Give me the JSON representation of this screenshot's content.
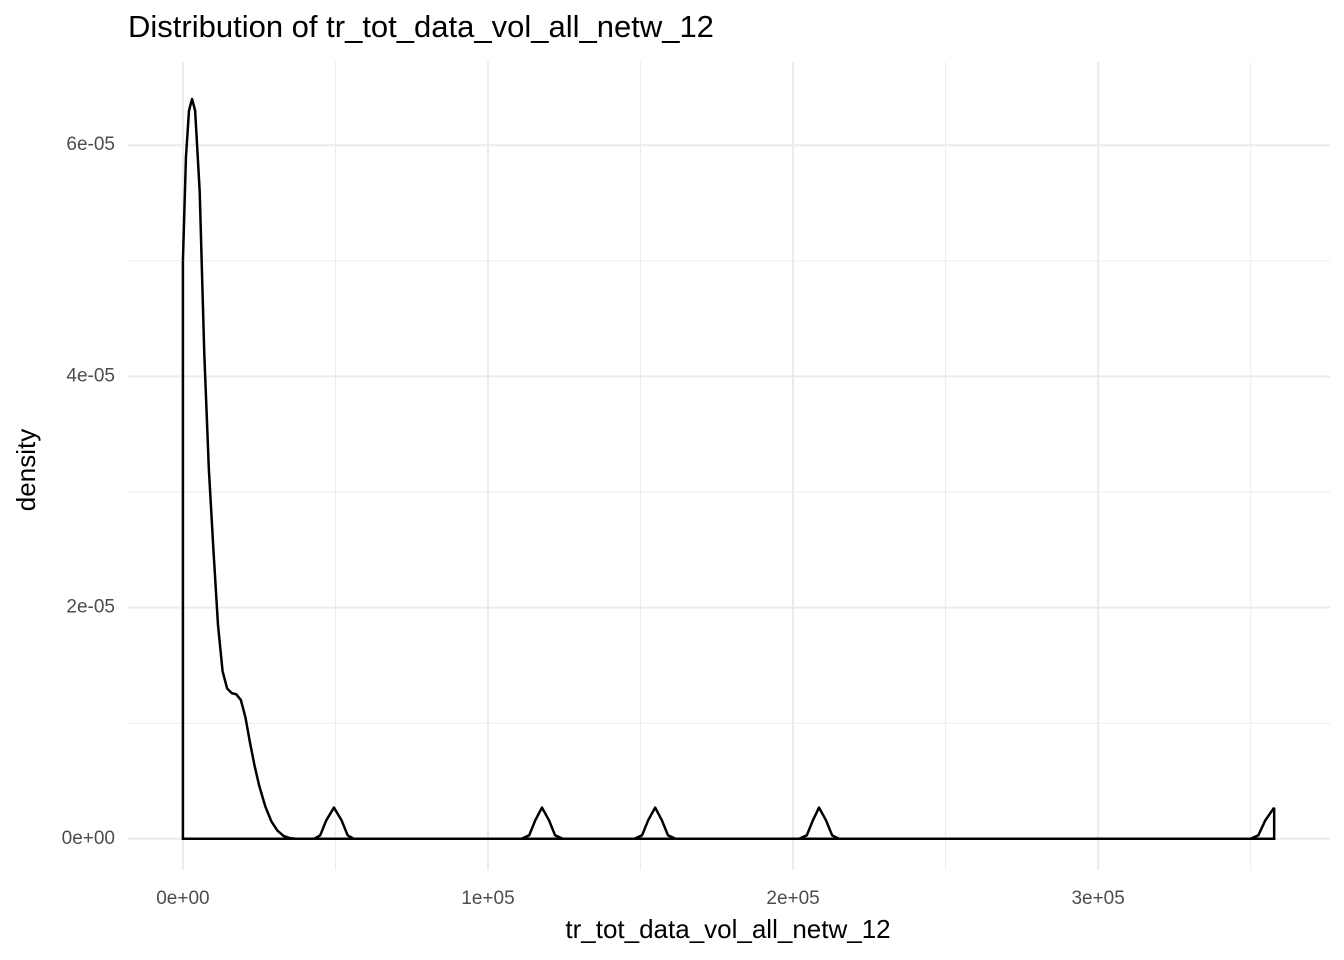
{
  "chart_data": {
    "type": "density",
    "title": "Distribution of tr_tot_data_vol_all_netw_12",
    "x_label": "tr_tot_data_vol_all_netw_12",
    "y_label": "density",
    "color": "#000000",
    "grid": true,
    "xlim": [
      -18000,
      376000
    ],
    "ylim": [
      -2.7e-06,
      6.72e-05
    ],
    "xticks": [
      {
        "value": 0,
        "label": "0e+00"
      },
      {
        "value": 100000,
        "label": "1e+05"
      },
      {
        "value": 200000,
        "label": "2e+05"
      },
      {
        "value": 300000,
        "label": "3e+05"
      }
    ],
    "yticks": [
      {
        "value": 0,
        "label": "0e+00"
      },
      {
        "value": 2e-05,
        "label": "2e-05"
      },
      {
        "value": 4e-05,
        "label": "4e-05"
      },
      {
        "value": 6e-05,
        "label": "6e-05"
      }
    ],
    "xminor": [
      50000,
      150000,
      250000,
      350000
    ],
    "yminor": [
      1e-05,
      3e-05,
      5e-05
    ],
    "x": [
      0,
      1000,
      2000,
      3000,
      4000,
      5500,
      7000,
      8500,
      10000,
      11500,
      13000,
      14500,
      16000,
      17500,
      19000,
      20500,
      22000,
      23500,
      25000,
      27000,
      29000,
      31000,
      33000,
      35000,
      37000,
      43000,
      45000,
      47000,
      49500,
      52000,
      54000,
      56000,
      111000,
      113500,
      115500,
      117700,
      120000,
      122000,
      124500,
      148000,
      150500,
      152500,
      154800,
      157000,
      159000,
      161500,
      202000,
      204500,
      206500,
      208500,
      210800,
      212800,
      215000,
      350000,
      352500,
      354800,
      357700
    ],
    "values": [
      5e-05,
      5.9e-05,
      6.3e-05,
      6.4e-05,
      6.3e-05,
      5.6e-05,
      4.2e-05,
      3.2e-05,
      2.5e-05,
      1.85e-05,
      1.45e-05,
      1.3e-05,
      1.26e-05,
      1.25e-05,
      1.2e-05,
      1.05e-05,
      8.3e-06,
      6.3e-06,
      4.6e-06,
      2.8e-06,
      1.5e-06,
      7e-07,
      2.5e-07,
      6e-08,
      0,
      0,
      3e-07,
      1.6e-06,
      2.7e-06,
      1.6e-06,
      3e-07,
      0,
      0,
      3e-07,
      1.6e-06,
      2.7e-06,
      1.6e-06,
      3e-07,
      0,
      0,
      3e-07,
      1.6e-06,
      2.7e-06,
      1.6e-06,
      3e-07,
      0,
      0,
      3e-07,
      1.6e-06,
      2.7e-06,
      1.6e-06,
      3e-07,
      0,
      0,
      3e-07,
      1.6e-06,
      2.7e-06
    ]
  }
}
